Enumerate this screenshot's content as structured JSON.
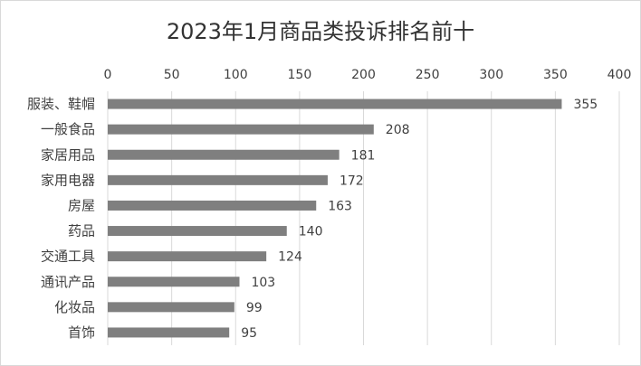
{
  "chart_data": {
    "type": "bar",
    "orientation": "horizontal",
    "title": "2023年1月商品类投诉排名前十",
    "categories": [
      "服装、鞋帽",
      "一般食品",
      "家居用品",
      "家用电器",
      "房屋",
      "药品",
      "交通工具",
      "通讯产品",
      "化妆品",
      "首饰"
    ],
    "values": [
      355,
      208,
      181,
      172,
      163,
      140,
      124,
      103,
      99,
      95
    ],
    "data_labels": [
      "355",
      "208",
      "181",
      "172",
      "163",
      "140",
      "124",
      "103",
      "99",
      "95"
    ],
    "x_ticks": [
      "0",
      "50",
      "100",
      "150",
      "200",
      "250",
      "300",
      "350",
      "400"
    ],
    "xlim": [
      0,
      400
    ],
    "x_axis_position": "top",
    "grid": "vertical",
    "legend": "none",
    "bar_color": "#7f7f7f",
    "grid_color": "#d9d9d9"
  }
}
